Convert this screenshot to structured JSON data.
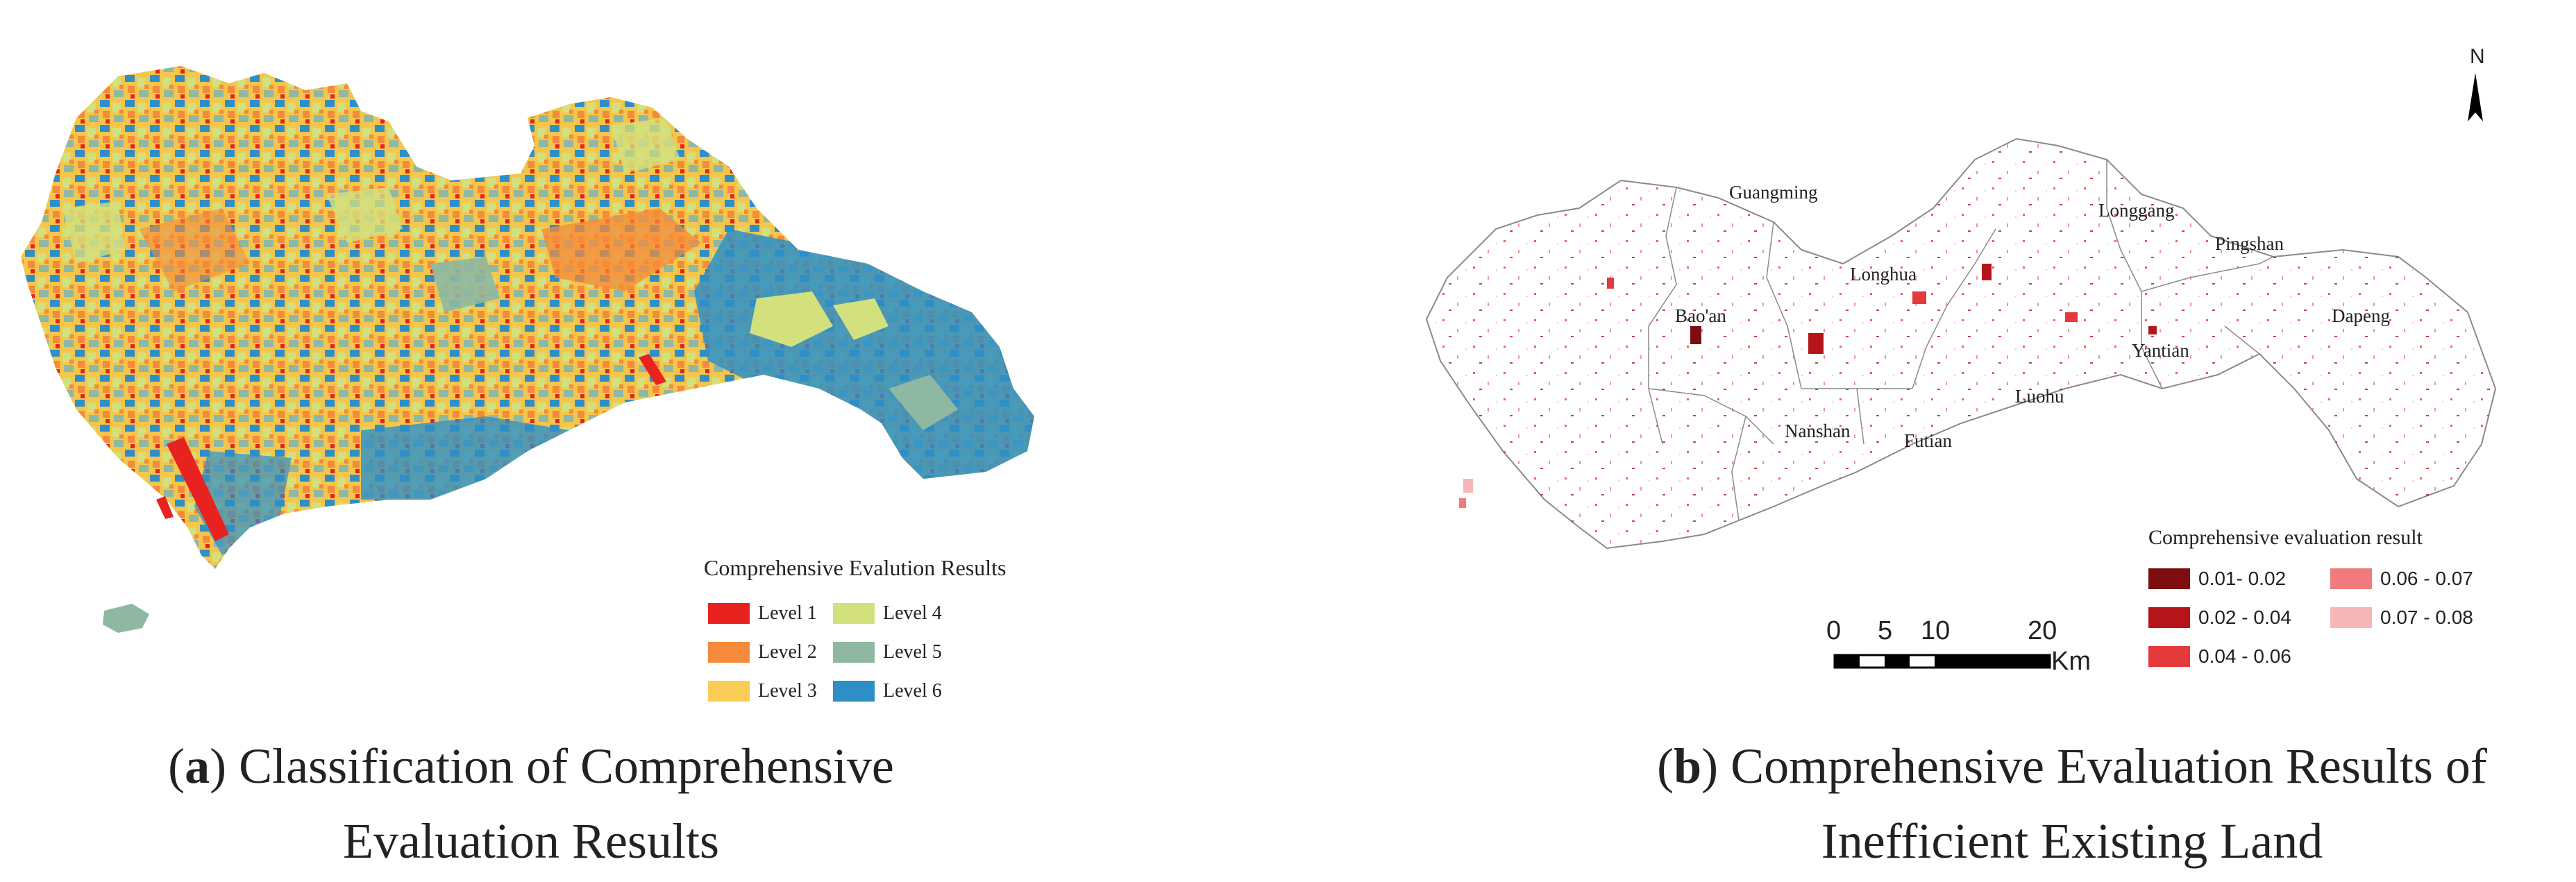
{
  "panel_a": {
    "legend_title": "Comprehensive Evalution Results",
    "levels": [
      {
        "label": "Level 1",
        "color": "#e8231f"
      },
      {
        "label": "Level 2",
        "color": "#f58a3a"
      },
      {
        "label": "Level 3",
        "color": "#f9cd55"
      },
      {
        "label": "Level 4",
        "color": "#d2e07e"
      },
      {
        "label": "Level 5",
        "color": "#8fb8a2"
      },
      {
        "label": "Level 6",
        "color": "#2e8fc7"
      }
    ],
    "caption_letter": "a",
    "caption_line1": "Classification of Comprehensive",
    "caption_line2": "Evaluation Results"
  },
  "panel_b": {
    "north_label": "N",
    "districts": [
      "Guangming",
      "Longhua",
      "Bao'an",
      "Longgang",
      "Pingshan",
      "Dapeng",
      "Yantian",
      "Luohu",
      "Nanshan",
      "Futian"
    ],
    "legend_title": "Comprehensive evaluation result",
    "classes": [
      {
        "label": "0.01- 0.02",
        "color": "#7d0d0f"
      },
      {
        "label": "0.02 - 0.04",
        "color": "#b5151a"
      },
      {
        "label": "0.04 - 0.06",
        "color": "#e43a3c"
      },
      {
        "label": "0.06 - 0.07",
        "color": "#f07a7c"
      },
      {
        "label": "0.07 - 0.08",
        "color": "#f6b7b8"
      }
    ],
    "scale_ticks": [
      "0",
      "5",
      "10",
      "20"
    ],
    "scale_unit": "Km",
    "caption_letter": "b",
    "caption_line1": "Comprehensive Evaluation Results of",
    "caption_line2": "Inefficient Existing Land"
  }
}
